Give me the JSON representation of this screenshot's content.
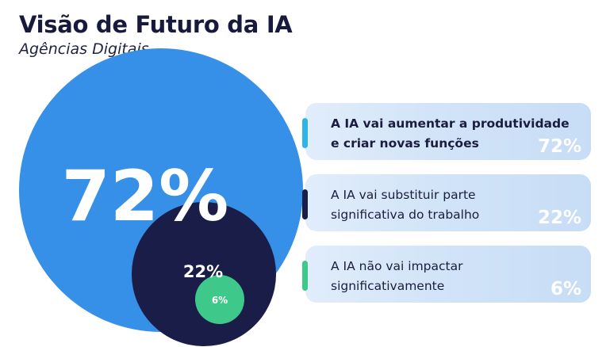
{
  "title": "Visão de Futuro da IA",
  "subtitle": "Agências Digitais",
  "chart_data": {
    "type": "pie",
    "categories": [
      "A IA vai aumentar a produtividade e criar novas funções",
      "A IA vai substituir parte significativa do trabalho",
      "A IA não vai impactar significativamente"
    ],
    "values": [
      72,
      22,
      6
    ],
    "labels": [
      "72%",
      "22%",
      "6%"
    ],
    "colors": [
      "#3790e8",
      "#1a1d48",
      "#3ec98a"
    ]
  },
  "cards": [
    {
      "line1": "A IA vai aumentar a produtividade",
      "line2": "e criar novas funções",
      "pct": "72%",
      "accent": "#2eb4e6"
    },
    {
      "line1": "A IA vai substituir parte",
      "line2": "significativa do trabalho",
      "pct": "22%",
      "accent": "#1a1d48"
    },
    {
      "line1": "A IA não vai impactar",
      "line2": "significativamente",
      "pct": "6%",
      "accent": "#3ec98a"
    }
  ]
}
